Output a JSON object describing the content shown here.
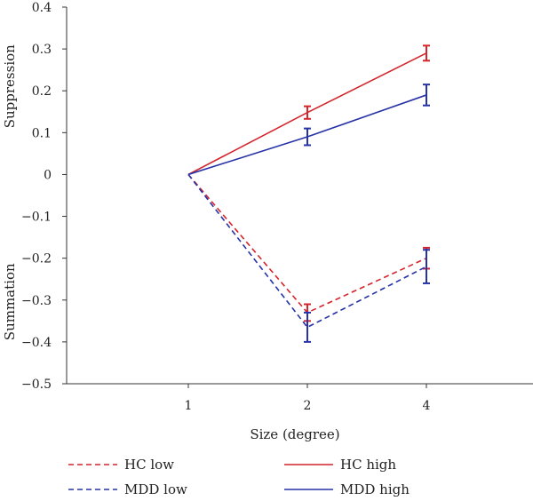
{
  "chart_data": {
    "type": "line",
    "categories": [
      "1",
      "2",
      "4"
    ],
    "xlabel": "Size (degree)",
    "ylabels": [
      "Suppression",
      "Summation"
    ],
    "ylim": [
      -0.5,
      0.4
    ],
    "yticks": [
      0.4,
      0.3,
      0.2,
      0.1,
      0,
      -0.1,
      -0.2,
      -0.3,
      -0.4,
      -0.5
    ],
    "ytick_labels": [
      "0.4",
      "0.3",
      "0.2",
      "0.1",
      "0",
      "−0.1",
      "−0.2",
      "−0.3",
      "−0.4",
      "−0.5"
    ],
    "grid": false,
    "legend_position": "bottom",
    "series": [
      {
        "name": "HC low",
        "color": "#d4242c",
        "dash": true,
        "values": [
          0,
          -0.33,
          -0.2
        ],
        "errors": [
          0,
          0.02,
          0.025
        ]
      },
      {
        "name": "MDD low",
        "color": "#2632a6",
        "dash": true,
        "values": [
          0,
          -0.365,
          -0.22
        ],
        "errors": [
          0,
          0.035,
          0.04
        ]
      },
      {
        "name": "HC high",
        "color": "#d4242c",
        "dash": false,
        "values": [
          0,
          0.148,
          0.29
        ],
        "errors": [
          0,
          0.015,
          0.018
        ]
      },
      {
        "name": "MDD high",
        "color": "#2632a6",
        "dash": false,
        "values": [
          0,
          0.09,
          0.19
        ],
        "errors": [
          0,
          0.02,
          0.025
        ]
      }
    ]
  }
}
